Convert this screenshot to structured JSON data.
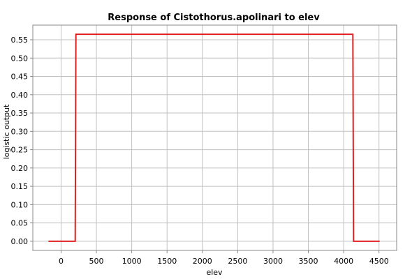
{
  "chart_data": {
    "type": "line",
    "title": "Response of Cistothorus.apolinari to elev",
    "xlabel": "elev",
    "ylabel": "logistic output",
    "xlim": [
      -400,
      4750
    ],
    "ylim": [
      -0.025,
      0.59
    ],
    "x_ticks": [
      0,
      500,
      1000,
      1500,
      2000,
      2500,
      3000,
      3500,
      4000,
      4500
    ],
    "y_ticks": [
      0.0,
      0.05,
      0.1,
      0.15,
      0.2,
      0.25,
      0.3,
      0.35,
      0.4,
      0.45,
      0.5,
      0.55
    ],
    "y_tick_labels": [
      "0.00",
      "0.05",
      "0.10",
      "0.15",
      "0.20",
      "0.25",
      "0.30",
      "0.35",
      "0.40",
      "0.45",
      "0.50",
      "0.55"
    ],
    "grid": true,
    "series": [
      {
        "color": "#e02020",
        "x": [
          -180,
          200,
          210,
          4130,
          4140,
          4510
        ],
        "y": [
          0.0,
          0.0,
          0.565,
          0.565,
          0.0,
          0.0
        ]
      }
    ]
  }
}
